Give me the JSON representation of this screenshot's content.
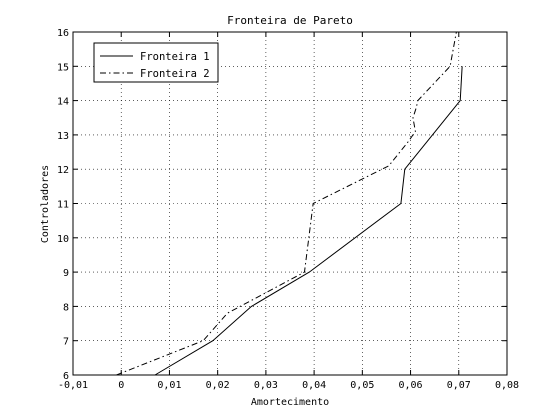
{
  "chart_data": {
    "type": "line",
    "title": "Fronteira de Pareto",
    "xlabel": "Amortecimento",
    "ylabel": "Controladores",
    "xlim": [
      -0.01,
      0.08
    ],
    "ylim": [
      6,
      16
    ],
    "grid": true,
    "legend_position": "top-left",
    "x_ticks": [
      -0.01,
      0,
      0.01,
      0.02,
      0.03,
      0.04,
      0.05,
      0.06,
      0.07,
      0.08
    ],
    "x_tick_labels": [
      "-0,01",
      "0",
      "0,01",
      "0,02",
      "0,03",
      "0,04",
      "0,05",
      "0,06",
      "0,07",
      "0,08"
    ],
    "y_ticks": [
      6,
      7,
      8,
      9,
      10,
      11,
      12,
      13,
      14,
      15,
      16
    ],
    "y_tick_labels": [
      "6",
      "7",
      "8",
      "9",
      "10",
      "11",
      "12",
      "13",
      "14",
      "15",
      "16"
    ],
    "series": [
      {
        "name": "Fronteira 1",
        "style": "solid",
        "color": "#000000",
        "x": [
          0.007,
          0.019,
          0.027,
          0.039,
          0.058,
          0.0588,
          0.0703,
          0.0707
        ],
        "y": [
          6,
          7,
          8,
          9,
          11,
          12,
          14,
          15
        ]
      },
      {
        "name": "Fronteira 2",
        "style": "dashdot",
        "color": "#000000",
        "x": [
          -0.001,
          0.017,
          0.022,
          0.038,
          0.0398,
          0.0555,
          0.0595,
          0.061,
          0.0605,
          0.0612,
          0.0615,
          0.0682,
          0.0695
        ],
        "y": [
          6,
          7,
          7.8,
          9,
          11,
          12.1,
          12.8,
          13.1,
          13.5,
          13.8,
          14,
          15,
          16
        ]
      }
    ]
  }
}
